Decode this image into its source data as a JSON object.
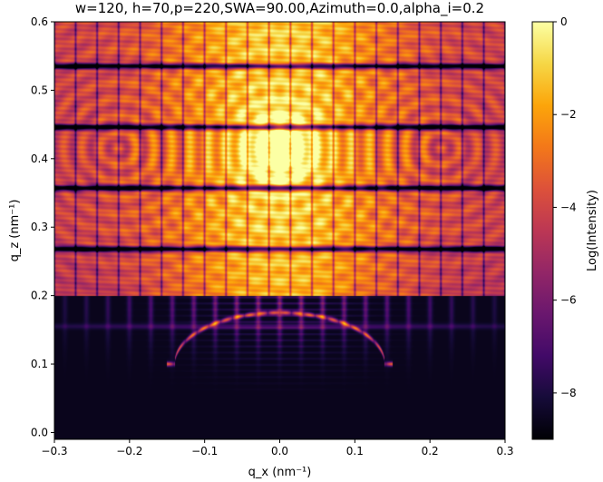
{
  "chart_data": {
    "type": "heatmap",
    "title": "w=120, h=70,p=220,SWA=90.00,Azimuth=0.0,alpha_i=0.2",
    "xlabel": "q_x (nm⁻¹)",
    "ylabel": "q_z (nm⁻¹)",
    "xlim": [
      -0.3,
      0.3
    ],
    "ylim": [
      -0.01,
      0.6
    ],
    "xticks": [
      -0.3,
      -0.2,
      -0.1,
      0.0,
      0.1,
      0.2,
      0.3
    ],
    "xtick_labels": [
      "−0.3",
      "−0.2",
      "−0.1",
      "0.0",
      "0.1",
      "0.2",
      "0.3"
    ],
    "yticks": [
      0.0,
      0.1,
      0.2,
      0.3,
      0.4,
      0.5,
      0.6
    ],
    "ytick_labels": [
      "0.0",
      "0.1",
      "0.2",
      "0.3",
      "0.4",
      "0.5",
      "0.6"
    ],
    "colorbar": {
      "label": "Log(Intensity)",
      "range": [
        -9,
        0
      ],
      "ticks": [
        0,
        -2,
        -4,
        -6,
        -8
      ],
      "tick_labels": [
        "0",
        "−2",
        "−4",
        "−6",
        "−8"
      ],
      "colormap": "inferno"
    },
    "pattern": {
      "grating_rod_spacing_qx": 0.0286,
      "horizontal_minima_qz": [
        0.177,
        0.268,
        0.357,
        0.446,
        0.535
      ],
      "strongest_peak": {
        "qx": 0.0,
        "qz": 0.415,
        "log_intensity": 0.0
      },
      "ring_centers_qx": [
        -0.214,
        0.0,
        0.214
      ],
      "arc": {
        "qx_range": [
          -0.14,
          0.14
        ],
        "qz_top": 0.175,
        "qz_ends": 0.1
      }
    }
  }
}
